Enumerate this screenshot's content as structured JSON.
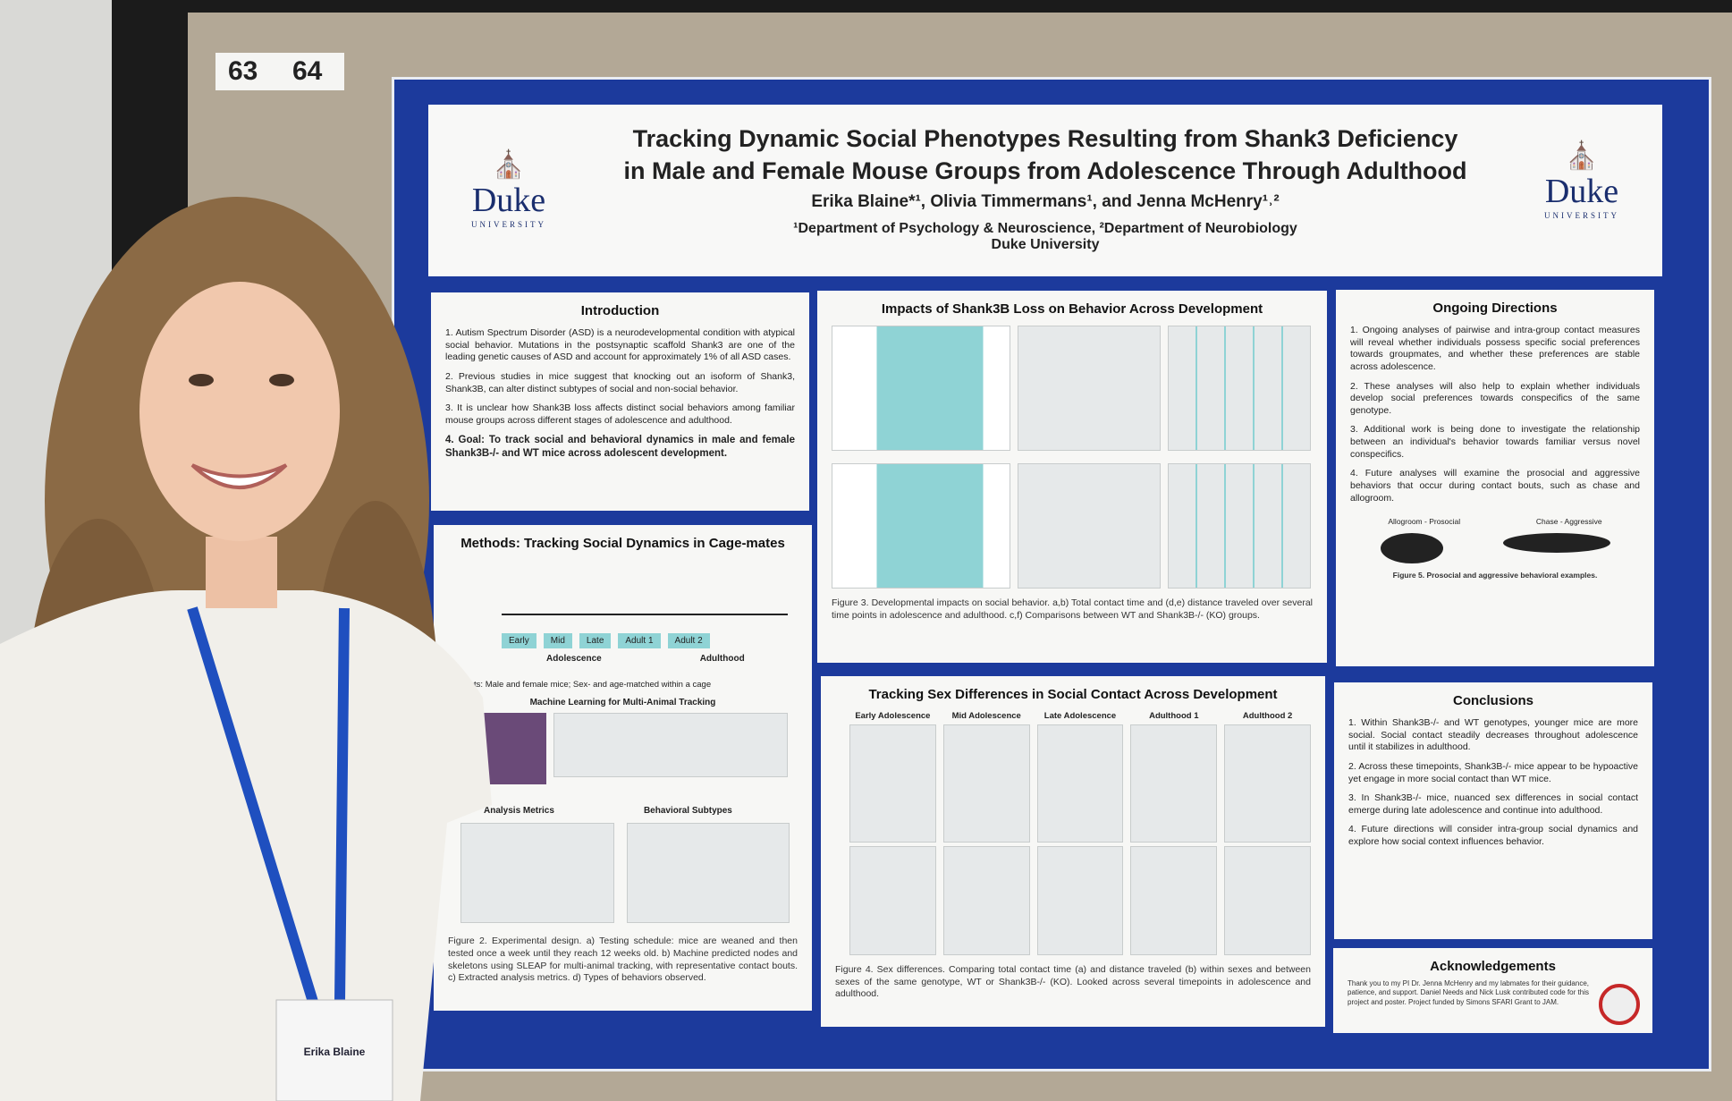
{
  "board_numbers": [
    "63",
    "64"
  ],
  "poster": {
    "header": {
      "title": [
        "Tracking Dynamic Social Phenotypes Resulting from Shank3 Deficiency",
        "in Male and Female Mouse Groups from Adolescence Through Adulthood"
      ],
      "authors": "Erika Blaine*¹, Olivia Timmermans¹, and Jenna McHenry¹˒²",
      "affiliation": "¹Department of Psychology & Neuroscience, ²Department of Neurobiology",
      "institution": "Duke University",
      "logo_text": "Duke",
      "logo_subtext": "UNIVERSITY"
    },
    "introduction": {
      "title": "Introduction",
      "items": [
        "1. Autism Spectrum Disorder (ASD) is a neurodevelopmental condition with atypical social behavior. Mutations in the postsynaptic scaffold Shank3 are one of the leading genetic causes of ASD and account for approximately 1% of all ASD cases.",
        "2. Previous studies in mice suggest that knocking out an isoform of Shank3, Shank3B, can alter distinct subtypes of social and non-social behavior.",
        "3. It is unclear how Shank3B loss affects distinct social behaviors among familiar mouse groups across different stages of adolescence and adulthood.",
        "4. Goal: To track social and behavioral dynamics in male and female Shank3B-/- and WT mice across adolescent development."
      ]
    },
    "methods": {
      "title": "Methods: Tracking Social Dynamics in Cage-mates",
      "stages": [
        "Early",
        "Mid",
        "Late",
        "Adult 1",
        "Adult 2"
      ],
      "groups": [
        "Adolescence",
        "Adulthood"
      ],
      "subjects": "Subjects: Male and female mice; Sex- and age-matched within a cage",
      "ml_title": "Machine Learning for Multi-Animal Tracking",
      "analysis_title": "Analysis Metrics",
      "subtypes_title": "Behavioral Subtypes",
      "caption": "Figure 2. Experimental design. a) Testing schedule: mice are weaned and then tested once a week until they reach 12 weeks old. b) Machine predicted nodes and skeletons using SLEAP for multi-animal tracking, with representative contact bouts. c) Extracted analysis metrics. d) Types of behaviors observed."
    },
    "impacts": {
      "title": "Impacts of Shank3B Loss on Behavior Across Development",
      "caption": "Figure 3. Developmental impacts on social behavior. a,b) Total contact time and (d,e) distance traveled over several time points in adolescence and adulthood. c,f) Comparisons between WT and Shank3B-/- (KO) groups."
    },
    "sex_differences": {
      "title": "Tracking Sex Differences in Social Contact Across Development",
      "panels": [
        "Early Adolescence",
        "Mid Adolescence",
        "Late Adolescence",
        "Adulthood 1",
        "Adulthood 2"
      ],
      "caption": "Figure 4. Sex differences. Comparing total contact time (a) and distance traveled (b) within sexes and between sexes of the same genotype, WT or Shank3B-/- (KO). Looked across several timepoints in adolescence and adulthood."
    },
    "ongoing": {
      "title": "Ongoing Directions",
      "items": [
        "1. Ongoing analyses of pairwise and intra-group contact measures will reveal whether individuals possess specific social preferences towards groupmates, and whether these preferences are stable across adolescence.",
        "2. These analyses will also help to explain whether individuals develop social preferences towards conspecifics of the same genotype.",
        "3. Additional work is being done to investigate the relationship between an individual's behavior towards familiar versus novel conspecifics.",
        "4. Future analyses will examine the prosocial and aggressive behaviors that occur during contact bouts, such as chase and allogroom."
      ],
      "figure_labels": [
        "Allogroom - Prosocial",
        "Chase - Aggressive"
      ],
      "caption": "Figure 5. Prosocial and aggressive behavioral examples."
    },
    "conclusions": {
      "title": "Conclusions",
      "items": [
        "1. Within Shank3B-/- and WT genotypes, younger mice are more social. Social contact steadily decreases throughout adolescence until it stabilizes in adulthood.",
        "2. Across these timepoints, Shank3B-/- mice appear to be hypoactive yet engage in more social contact than WT mice.",
        "3. In Shank3B-/- mice, nuanced sex differences in social contact emerge during late adolescence and continue into adulthood.",
        "4. Future directions will consider intra-group social dynamics and explore how social context influences behavior."
      ]
    },
    "acknowledgements": {
      "title": "Acknowledgements",
      "text": "Thank you to my PI Dr. Jenna McHenry and my labmates for their guidance, patience, and support. Daniel Needs and Nick Lusk contributed code for this project and poster. Project funded by Simons SFARI Grant to JAM."
    }
  },
  "badge": {
    "name": "Erika Blaine"
  }
}
